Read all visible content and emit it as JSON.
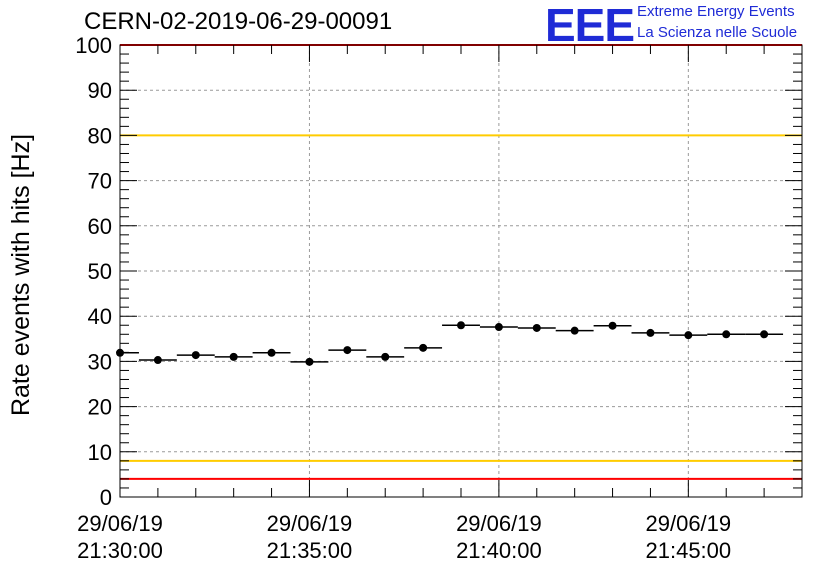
{
  "header": {
    "run_title": "CERN-02-2019-06-29-00091",
    "logo_text": "EEE",
    "brand_line1": "Extreme Energy Events",
    "brand_line2": "La Scienza nelle Scuole"
  },
  "chart_data": {
    "type": "scatter",
    "title": "CERN-02-2019-06-29-00091",
    "xlabel": "",
    "ylabel": "Rate events with hits [Hz]",
    "ylim": [
      0,
      100
    ],
    "yticks": [
      0,
      10,
      20,
      30,
      40,
      50,
      60,
      70,
      80,
      90,
      100
    ],
    "xlim_minutes": [
      0,
      18
    ],
    "xticks": [
      {
        "minute": 0,
        "date": "29/06/19",
        "time": "21:30:00"
      },
      {
        "minute": 5,
        "date": "29/06/19",
        "time": "21:35:00"
      },
      {
        "minute": 10,
        "date": "29/06/19",
        "time": "21:40:00"
      },
      {
        "minute": 15,
        "date": "29/06/19",
        "time": "21:45:00"
      }
    ],
    "grid": true,
    "bin_width_minutes": 1,
    "x_minutes": [
      0,
      1,
      2,
      3,
      4,
      5,
      6,
      7,
      8,
      9,
      10,
      11,
      12,
      13,
      14,
      15,
      16,
      17
    ],
    "values": [
      31.9,
      30.3,
      31.4,
      31.0,
      31.9,
      29.9,
      32.5,
      31.0,
      33.0,
      38.0,
      37.6,
      37.4,
      36.8,
      37.9,
      36.3,
      35.8,
      36.0,
      36.0
    ],
    "reference_lines": [
      {
        "value": 100,
        "color": "#ff0000"
      },
      {
        "value": 80,
        "color": "#ffcc00"
      },
      {
        "value": 8,
        "color": "#ffcc00"
      },
      {
        "value": 4,
        "color": "#ff0000"
      }
    ]
  }
}
